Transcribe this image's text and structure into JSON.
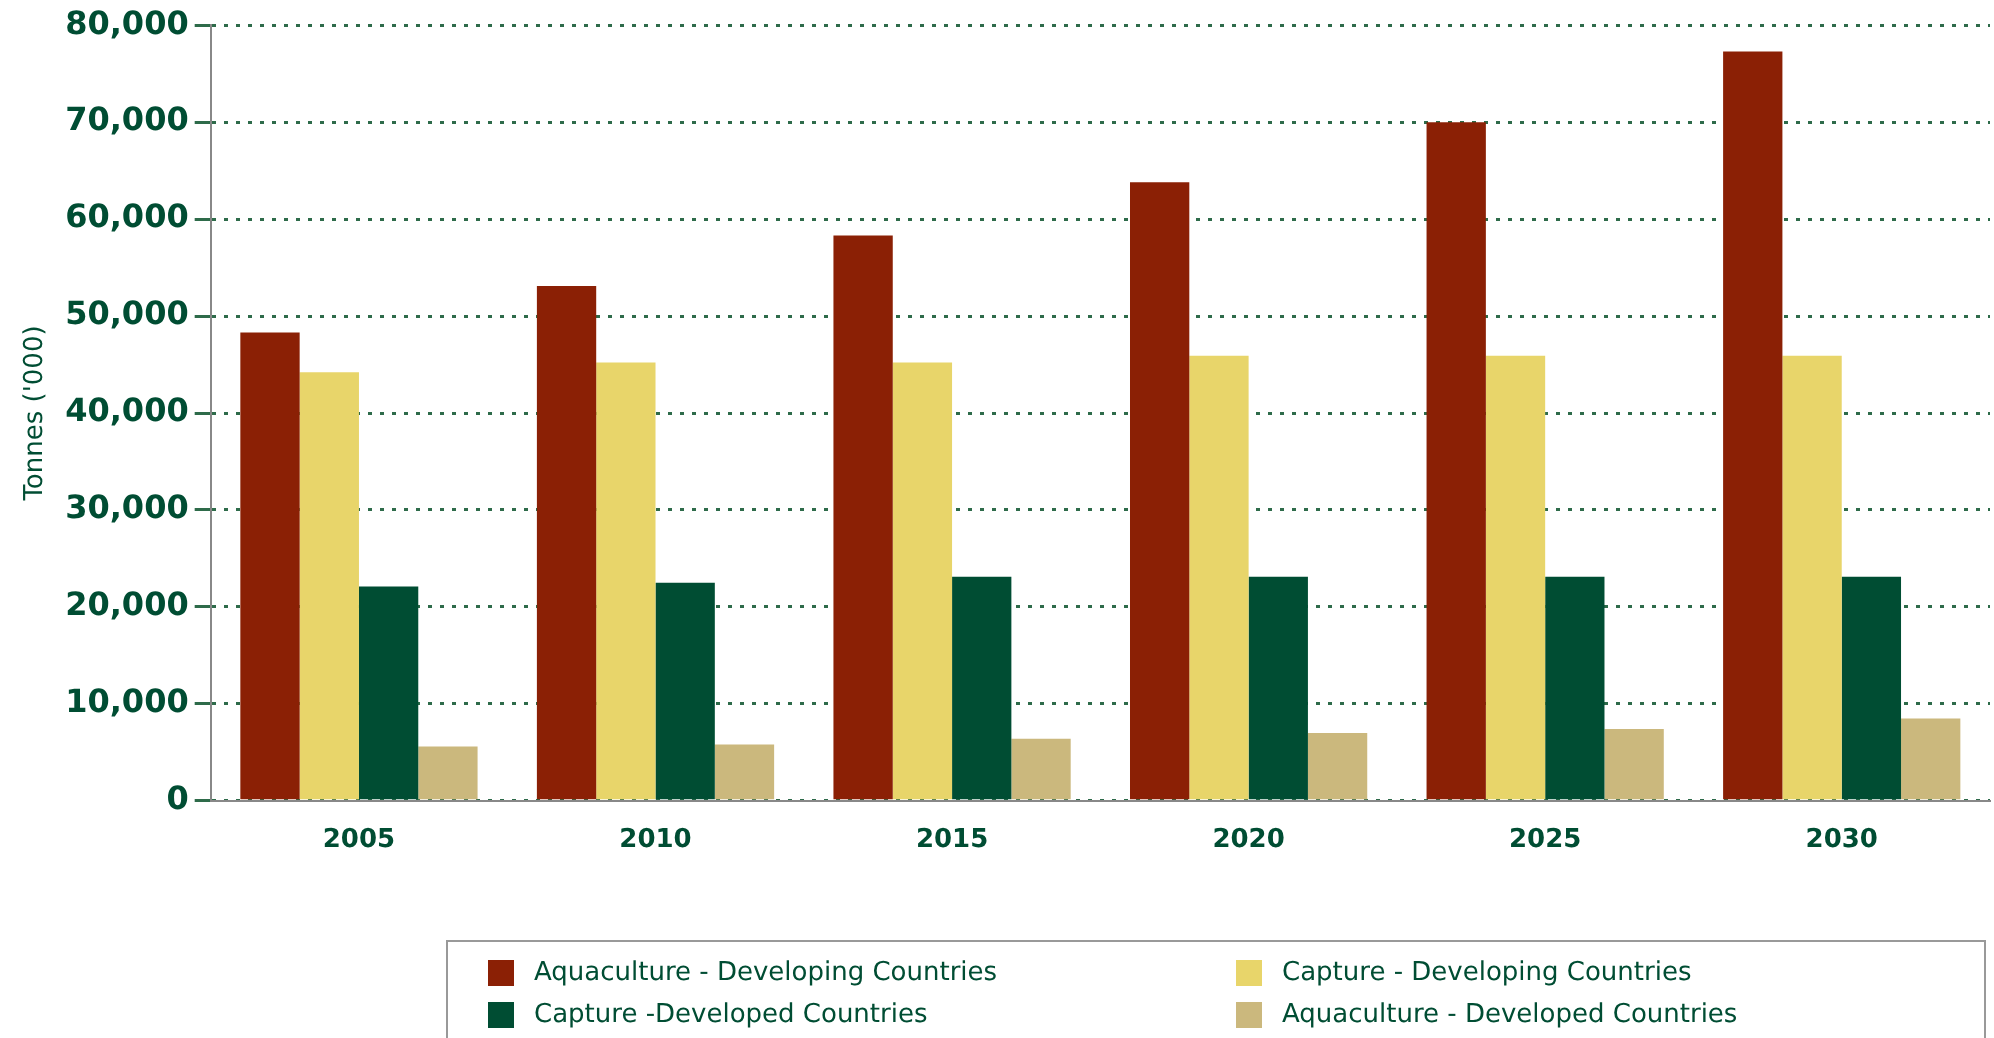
{
  "chart_data": {
    "type": "bar",
    "ylabel": "Tonnes ('000)",
    "categories": [
      "2005",
      "2010",
      "2015",
      "2020",
      "2025",
      "2030"
    ],
    "series": [
      {
        "name": "Aquaculture - Developing Countries",
        "color": "#8b2005",
        "values": [
          48300,
          53100,
          58300,
          63800,
          70000,
          77300
        ]
      },
      {
        "name": "Capture - Developing Countries",
        "color": "#e8d56a",
        "values": [
          44200,
          45200,
          45200,
          45900,
          45900,
          45900
        ]
      },
      {
        "name": "Capture -Developed Countries",
        "color": "#004d33",
        "values": [
          22100,
          22500,
          23100,
          23100,
          23100,
          23100
        ]
      },
      {
        "name": "Aquaculture - Developed Countries",
        "color": "#cbb87d",
        "values": [
          5600,
          5800,
          6400,
          7000,
          7400,
          8500
        ]
      }
    ],
    "ylim": [
      0,
      80000
    ],
    "yticks": [
      {
        "value": 0,
        "label": "0"
      },
      {
        "value": 10000,
        "label": "10,000"
      },
      {
        "value": 20000,
        "label": "20,000"
      },
      {
        "value": 30000,
        "label": "30,000"
      },
      {
        "value": 40000,
        "label": "40,000"
      },
      {
        "value": 50000,
        "label": "50,000"
      },
      {
        "value": 60000,
        "label": "60,000"
      },
      {
        "value": 70000,
        "label": "70,000"
      },
      {
        "value": 80000,
        "label": "80,000"
      }
    ],
    "grid": "y",
    "legend": "bottom"
  }
}
